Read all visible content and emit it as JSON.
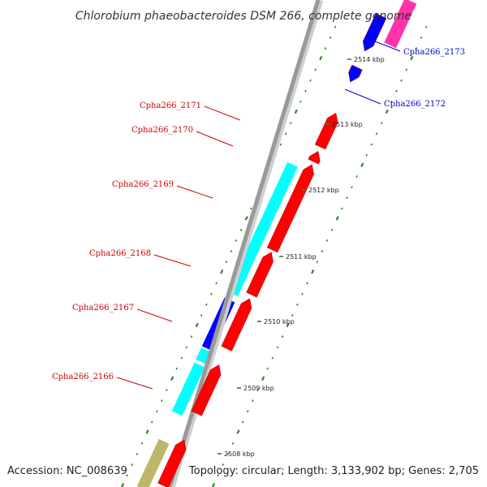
{
  "title": "Chlorobium phaeobacteroides DSM 266, complete genome",
  "footer": {
    "accession": "Accession: NC_008639",
    "topology": "Topology: circular; Length: 3,133,902 bp; Genes: 2,705"
  },
  "colors": {
    "cds_forward": "#ff0000",
    "cds_reverse": "#0000ff",
    "cog_cyan": "#00ffff",
    "cog_blue": "#0000ff",
    "cog_pink": "#ff33aa",
    "cog_tan": "#bdb76b",
    "backbone": "#999999",
    "ticks": "#228822",
    "label_forward": "#cc0000",
    "label_reverse": "#0000cc"
  },
  "kbp_ticks": [
    "2514 kbp",
    "2513 kbp",
    "2512 kbp",
    "2511 kbp",
    "2510 kbp",
    "2509 kbp",
    "2508 kbp"
  ],
  "gene_labels": [
    {
      "text": "Cpha266_2173",
      "strand": "reverse"
    },
    {
      "text": "Cpha266_2172",
      "strand": "reverse"
    },
    {
      "text": "Cpha266_2171",
      "strand": "forward"
    },
    {
      "text": "Cpha266_2170",
      "strand": "forward"
    },
    {
      "text": "Cpha266_2169",
      "strand": "forward"
    },
    {
      "text": "Cpha266_2168",
      "strand": "forward"
    },
    {
      "text": "Cpha266_2167",
      "strand": "forward"
    },
    {
      "text": "Cpha266_2166",
      "strand": "forward"
    }
  ]
}
